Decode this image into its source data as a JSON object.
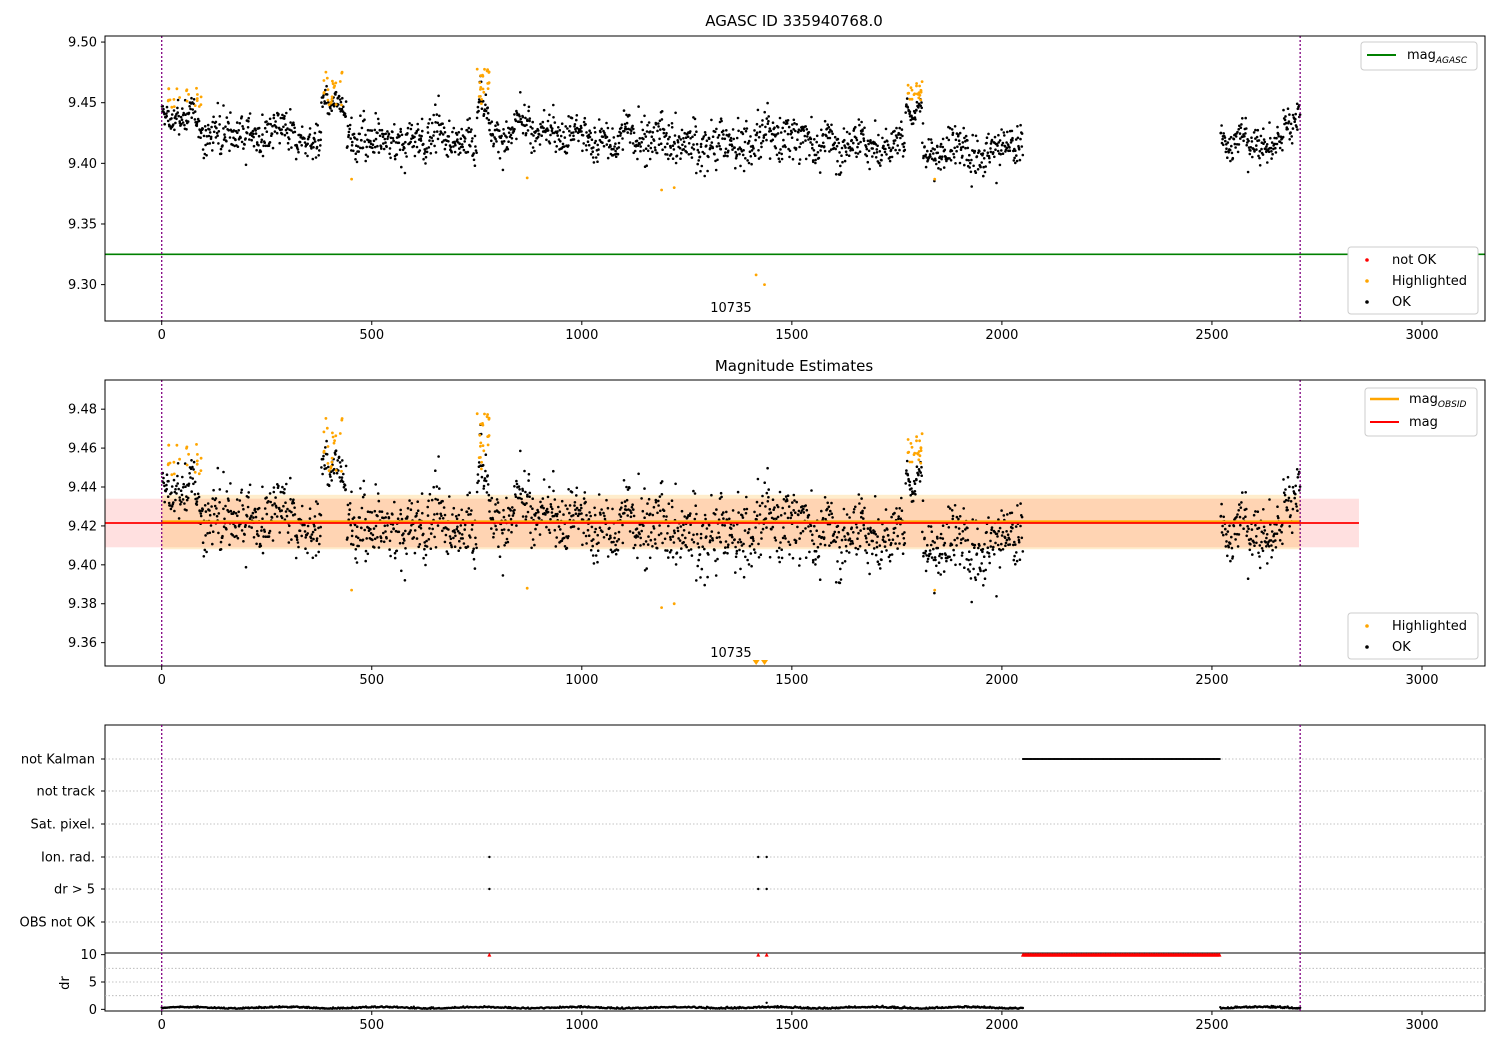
{
  "chart_data": [
    {
      "type": "scatter",
      "title": "AGASC ID 335940768.0",
      "xlabel": "",
      "ylabel": "",
      "xlim": [
        -135,
        3150
      ],
      "ylim": [
        9.27,
        9.505
      ],
      "x_ticks": [
        0,
        500,
        1000,
        1500,
        2000,
        2500,
        3000
      ],
      "y_ticks": [
        9.3,
        9.35,
        9.4,
        9.45,
        9.5
      ],
      "y_tick_labels": [
        "9.30",
        "9.35",
        "9.40",
        "9.45",
        "9.50"
      ],
      "grid": false,
      "vlines": [
        0,
        2710
      ],
      "hline": {
        "name": "mag",
        "subscript": "AGASC",
        "value": 9.325,
        "color": "#008000"
      },
      "annotation": {
        "text": "10735",
        "x": 1355
      },
      "legend_top": {
        "position": "top-right"
      },
      "legend_bottom": {
        "position": "lower-right",
        "entries": [
          {
            "label": "not OK",
            "color": "#ff0000"
          },
          {
            "label": "Highlighted",
            "color": "#ffa500"
          },
          {
            "label": "OK",
            "color": "#000000"
          }
        ]
      },
      "ok_segments": [
        {
          "x": [
            0,
            95
          ],
          "base": 9.44,
          "spread": 0.016
        },
        {
          "x": [
            95,
            380
          ],
          "base": 9.421,
          "spread": 0.02
        },
        {
          "x": [
            380,
            440
          ],
          "base": 9.45,
          "spread": 0.012
        },
        {
          "x": [
            440,
            750
          ],
          "base": 9.42,
          "spread": 0.02
        },
        {
          "x": [
            750,
            780
          ],
          "base": 9.45,
          "spread": 0.015
        },
        {
          "x": [
            780,
            1130
          ],
          "base": 9.423,
          "spread": 0.019
        },
        {
          "x": [
            1130,
            1500
          ],
          "base": 9.418,
          "spread": 0.024
        },
        {
          "x": [
            1500,
            1770
          ],
          "base": 9.42,
          "spread": 0.021
        },
        {
          "x": [
            1770,
            1810
          ],
          "base": 9.445,
          "spread": 0.012
        },
        {
          "x": [
            1810,
            2050
          ],
          "base": 9.415,
          "spread": 0.021
        },
        {
          "x": [
            2520,
            2670
          ],
          "base": 9.417,
          "spread": 0.015
        },
        {
          "x": [
            2670,
            2710
          ],
          "base": 9.435,
          "spread": 0.016
        }
      ],
      "highlighted_clusters": [
        {
          "x": [
            15,
            95
          ],
          "y": [
            9.445,
            9.463
          ]
        },
        {
          "x": [
            385,
            430
          ],
          "y": [
            9.448,
            9.478
          ]
        },
        {
          "x": [
            750,
            780
          ],
          "y": [
            9.445,
            9.481
          ]
        },
        {
          "x": [
            1770,
            1810
          ],
          "y": [
            9.452,
            9.47
          ]
        }
      ],
      "highlighted_points": [
        [
          452,
          9.387
        ],
        [
          870,
          9.388
        ],
        [
          1190,
          9.378
        ],
        [
          1220,
          9.38
        ],
        [
          1415,
          9.308
        ],
        [
          1435,
          9.3
        ],
        [
          1840,
          9.387
        ]
      ]
    },
    {
      "type": "scatter",
      "title": "Magnitude Estimates",
      "xlabel": "",
      "ylabel": "",
      "xlim": [
        -135,
        3150
      ],
      "ylim": [
        9.348,
        9.495
      ],
      "x_ticks": [
        0,
        500,
        1000,
        1500,
        2000,
        2500,
        3000
      ],
      "y_ticks": [
        9.36,
        9.38,
        9.4,
        9.42,
        9.44,
        9.46,
        9.48
      ],
      "y_tick_labels": [
        "9.36",
        "9.38",
        "9.40",
        "9.42",
        "9.44",
        "9.46",
        "9.48"
      ],
      "grid": false,
      "vlines": [
        0,
        2710
      ],
      "mag_obsid": {
        "name": "mag",
        "subscript": "OBSID",
        "value": 9.4222,
        "x": [
          0,
          2710
        ],
        "band": [
          9.408,
          9.436
        ],
        "color": "#ffa500"
      },
      "mag": {
        "name": "mag",
        "value": 9.4215,
        "x": [
          -135,
          2850
        ],
        "band": [
          9.409,
          9.434
        ],
        "color": "#ff0000"
      },
      "annotation": {
        "text": "10735",
        "x": 1355
      },
      "triangles_x": [
        1415,
        1435
      ],
      "legend_top": {
        "position": "top-right"
      },
      "legend_bottom": {
        "position": "lower-right",
        "entries": [
          {
            "label": "Highlighted",
            "color": "#ffa500"
          },
          {
            "label": "OK",
            "color": "#000000"
          }
        ]
      }
    },
    {
      "type": "scatter",
      "title": "",
      "xlabel": "",
      "ylabel": "dr",
      "xlim": [
        -135,
        3150
      ],
      "x_ticks": [
        0,
        500,
        1000,
        1500,
        2000,
        2500,
        3000
      ],
      "categories": [
        "not Kalman",
        "not track",
        "Sat. pixel.",
        "Ion. rad.",
        "dr > 5",
        "OBS not OK"
      ],
      "flags": {
        "not Kalman": [
          [
            2050,
            2520
          ]
        ],
        "Ion. rad.": [
          780,
          1420,
          1440
        ],
        "dr > 5": [
          780,
          1420,
          1440
        ]
      },
      "dr": {
        "ylim": [
          -0.3,
          10.3
        ],
        "y_ticks": [
          0,
          5,
          10
        ],
        "grid": true,
        "red_triangles": [
          780,
          1420,
          1440,
          [
            2050,
            2520
          ]
        ],
        "baseline_segments": [
          [
            0,
            2050
          ],
          [
            2520,
            2710
          ]
        ],
        "outlier": [
          1440,
          1.2
        ]
      },
      "vlines": [
        0,
        2710
      ]
    }
  ]
}
